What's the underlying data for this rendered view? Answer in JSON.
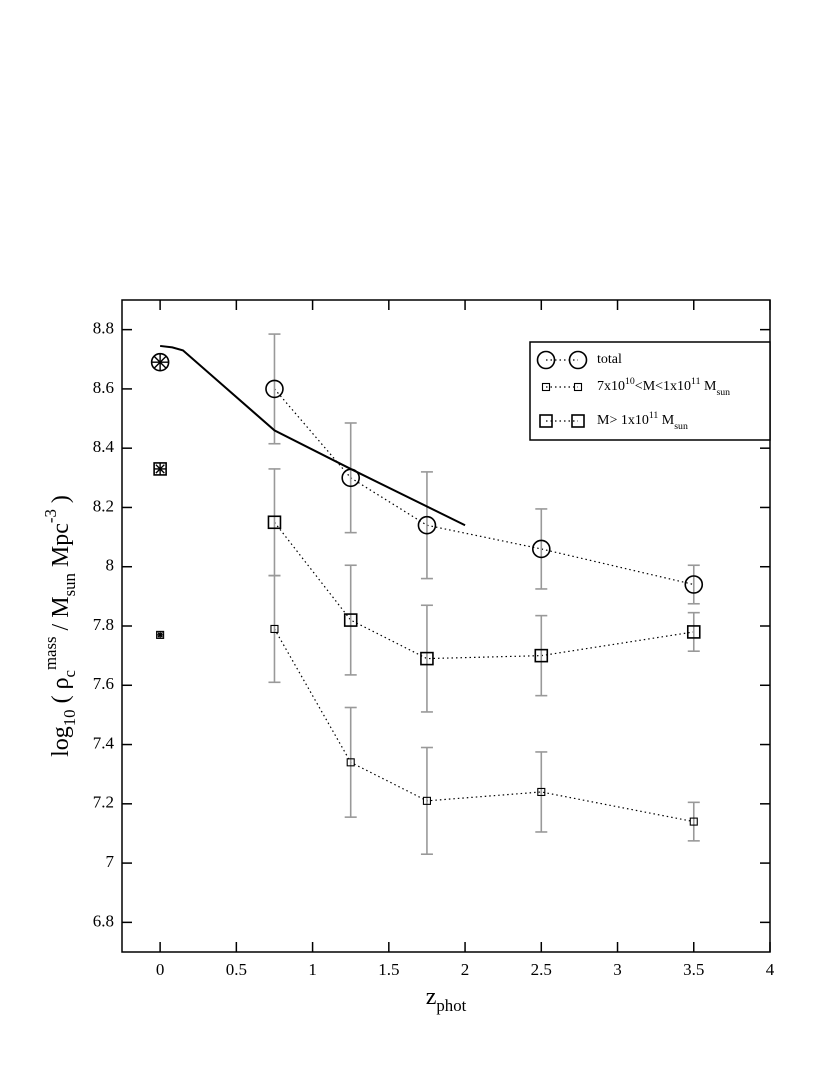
{
  "chart_data": {
    "type": "scatter",
    "xlabel": [
      {
        "t": "z"
      },
      {
        "sub": "phot"
      }
    ],
    "ylabel": [
      {
        "t": "log"
      },
      {
        "sub": "10"
      },
      {
        "t": " ( ρ"
      },
      {
        "sub": "c"
      },
      {
        "sup": "mass"
      },
      {
        "t": " / M"
      },
      {
        "sub": "sun"
      },
      {
        "t": " Mpc"
      },
      {
        "sup": "-3"
      },
      {
        "t": " )"
      }
    ],
    "xlim": [
      -0.25,
      4
    ],
    "ylim": [
      6.7,
      8.9
    ],
    "xticks": [
      0,
      0.5,
      1,
      1.5,
      2,
      2.5,
      3,
      3.5,
      4
    ],
    "yticks": [
      6.8,
      7,
      7.2,
      7.4,
      7.6,
      7.8,
      8,
      8.2,
      8.4,
      8.6,
      8.8
    ],
    "legend": "upper right",
    "series": [
      {
        "name": [
          {
            "t": "total"
          }
        ],
        "marker": "circle",
        "color": "#000",
        "error_color": "#999",
        "x": [
          0.75,
          1.25,
          1.75,
          2.5,
          3.5
        ],
        "values": [
          8.6,
          8.3,
          8.14,
          8.06,
          7.94
        ],
        "errors": [
          0.185,
          0.185,
          0.18,
          0.135,
          0.065
        ],
        "local_x": 0,
        "local_value": 8.69
      },
      {
        "name": [
          {
            "t": "7x10"
          },
          {
            "sup": "10"
          },
          {
            "t": "<M<1x10"
          },
          {
            "sup": "11"
          },
          {
            "t": " M"
          },
          {
            "sub": "sun"
          }
        ],
        "marker": "small-square",
        "color": "#000",
        "error_color": "#999",
        "x": [
          0.75,
          1.25,
          1.75,
          2.5,
          3.5
        ],
        "values": [
          7.79,
          7.34,
          7.21,
          7.24,
          7.14
        ],
        "errors": [
          0.18,
          0.185,
          0.18,
          0.135,
          0.065
        ],
        "local_x": 0,
        "local_value": 7.77
      },
      {
        "name": [
          {
            "t": "M> 1x10"
          },
          {
            "sup": "11"
          },
          {
            "t": " M"
          },
          {
            "sub": "sun"
          }
        ],
        "marker": "square",
        "color": "#000",
        "error_color": "#999",
        "x": [
          0.75,
          1.25,
          1.75,
          2.5,
          3.5
        ],
        "values": [
          8.15,
          7.82,
          7.69,
          7.7,
          7.78
        ],
        "errors": [
          0.18,
          0.185,
          0.18,
          0.135,
          0.065
        ],
        "local_x": 0,
        "local_value": 8.33
      },
      {
        "marker": "line",
        "color": "#000",
        "x": [
          0,
          0.08,
          0.15,
          0.75,
          1.25,
          2
        ],
        "values": [
          8.745,
          8.74,
          8.73,
          8.46,
          8.33,
          8.14
        ]
      }
    ]
  }
}
